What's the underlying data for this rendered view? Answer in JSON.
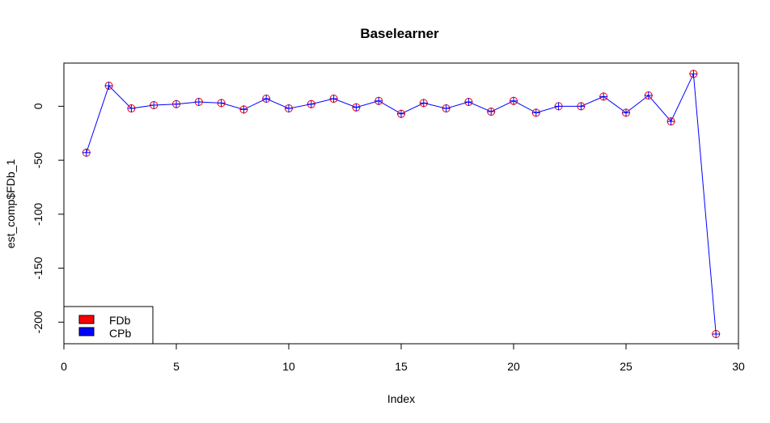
{
  "chart_data": {
    "type": "line",
    "title": "Baselearner",
    "xlabel": "Index",
    "ylabel": "est_comp$FDb_1",
    "xlim": [
      0,
      30
    ],
    "ylim": [
      -220,
      40
    ],
    "xticks": [
      0,
      5,
      10,
      15,
      20,
      25,
      30
    ],
    "xtick_labels": [
      "0",
      "5",
      "10",
      "15",
      "20",
      "25",
      "30"
    ],
    "yticks": [
      0,
      -50,
      -100,
      -150,
      -200
    ],
    "ytick_labels": [
      "0",
      "-50",
      "-100",
      "-150",
      "-200"
    ],
    "grid": false,
    "legend_position": "bottom-left",
    "x": [
      1,
      2,
      3,
      4,
      5,
      6,
      7,
      8,
      9,
      10,
      11,
      12,
      13,
      14,
      15,
      16,
      17,
      18,
      19,
      20,
      21,
      22,
      23,
      24,
      25,
      26,
      27,
      28,
      29
    ],
    "series": [
      {
        "name": "FDb",
        "color": "#ff0000",
        "marker": "circle",
        "values": [
          -43,
          19,
          -2,
          1,
          2,
          4,
          3,
          -3,
          7,
          -2,
          2,
          7,
          -1,
          5,
          -7,
          3,
          -2,
          4,
          -5,
          5,
          -6,
          0,
          0,
          9,
          -6,
          10,
          -14,
          30,
          -211
        ]
      },
      {
        "name": "CPb",
        "color": "#0000ff",
        "marker": "plus",
        "line": true,
        "values": [
          -43,
          19,
          -2,
          1,
          2,
          4,
          3,
          -3,
          7,
          -2,
          2,
          7,
          -1,
          5,
          -7,
          3,
          -2,
          4,
          -5,
          5,
          -6,
          0,
          0,
          9,
          -6,
          10,
          -14,
          30,
          -211
        ]
      }
    ]
  }
}
